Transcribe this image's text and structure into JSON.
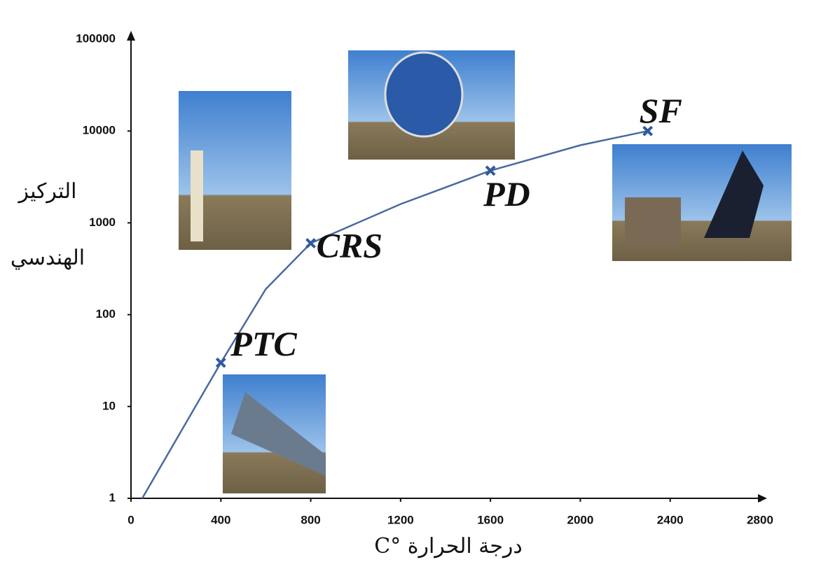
{
  "chart_data": {
    "type": "line",
    "y_label_lines": [
      "التركيز",
      "الهندسي"
    ],
    "x_label": "درجة الحرارة °C",
    "x": [
      50,
      400,
      600,
      800,
      1200,
      1600,
      2000,
      2300
    ],
    "series": [
      {
        "color": "#4a6a9e",
        "values": [
          1,
          30,
          190,
          600,
          1600,
          3700,
          7000,
          10000
        ]
      }
    ],
    "points": {
      "labels": [
        "PTC",
        "CRS",
        "PD",
        "SF"
      ],
      "x": [
        400,
        800,
        1600,
        2300
      ],
      "values": [
        30,
        600,
        3700,
        10000
      ],
      "color": "#2f5b9e"
    },
    "xlim": [
      0,
      2800
    ],
    "xticks": [
      0,
      400,
      800,
      1200,
      1600,
      2000,
      2400,
      2800
    ],
    "ylim": [
      1,
      100000
    ],
    "yticks": [
      1,
      10,
      100,
      1000,
      10000,
      100000
    ],
    "ylog": true
  }
}
